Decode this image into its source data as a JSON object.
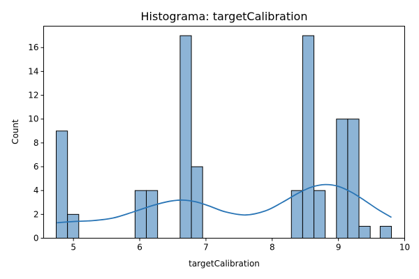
{
  "chart_data": {
    "type": "bar",
    "title": "Histograma: targetCalibration",
    "xlabel": "targetCalibration",
    "ylabel": "Count",
    "xlim": [
      4.55,
      10.0
    ],
    "ylim": [
      0,
      17.8
    ],
    "xticks": [
      5,
      6,
      7,
      8,
      9,
      10
    ],
    "yticks": [
      0,
      2,
      4,
      6,
      8,
      10,
      12,
      14,
      16
    ],
    "bar_color": "#8db4d6",
    "kde_color": "#2874b5",
    "grid": false,
    "bins": [
      {
        "x0": 4.74,
        "x1": 4.91,
        "count": 9
      },
      {
        "x0": 4.91,
        "x1": 5.08,
        "count": 2
      },
      {
        "x0": 5.93,
        "x1": 6.1,
        "count": 4
      },
      {
        "x0": 6.1,
        "x1": 6.27,
        "count": 4
      },
      {
        "x0": 6.61,
        "x1": 6.78,
        "count": 17
      },
      {
        "x0": 6.78,
        "x1": 6.95,
        "count": 6
      },
      {
        "x0": 8.29,
        "x1": 8.46,
        "count": 4
      },
      {
        "x0": 8.46,
        "x1": 8.63,
        "count": 17
      },
      {
        "x0": 8.63,
        "x1": 8.8,
        "count": 4
      },
      {
        "x0": 8.97,
        "x1": 9.14,
        "count": 10
      },
      {
        "x0": 9.14,
        "x1": 9.31,
        "count": 10
      },
      {
        "x0": 9.31,
        "x1": 9.48,
        "count": 1
      },
      {
        "x0": 9.63,
        "x1": 9.8,
        "count": 1
      }
    ],
    "kde": {
      "x": [
        4.75,
        5.0,
        5.3,
        5.6,
        5.9,
        6.2,
        6.45,
        6.65,
        6.85,
        7.05,
        7.3,
        7.6,
        7.9,
        8.15,
        8.4,
        8.6,
        8.8,
        9.0,
        9.2,
        9.4,
        9.6,
        9.8
      ],
      "y": [
        1.3,
        1.4,
        1.48,
        1.7,
        2.2,
        2.75,
        3.1,
        3.2,
        3.05,
        2.7,
        2.2,
        1.95,
        2.3,
        3.0,
        3.8,
        4.3,
        4.5,
        4.35,
        3.85,
        3.15,
        2.4,
        1.75
      ]
    }
  }
}
